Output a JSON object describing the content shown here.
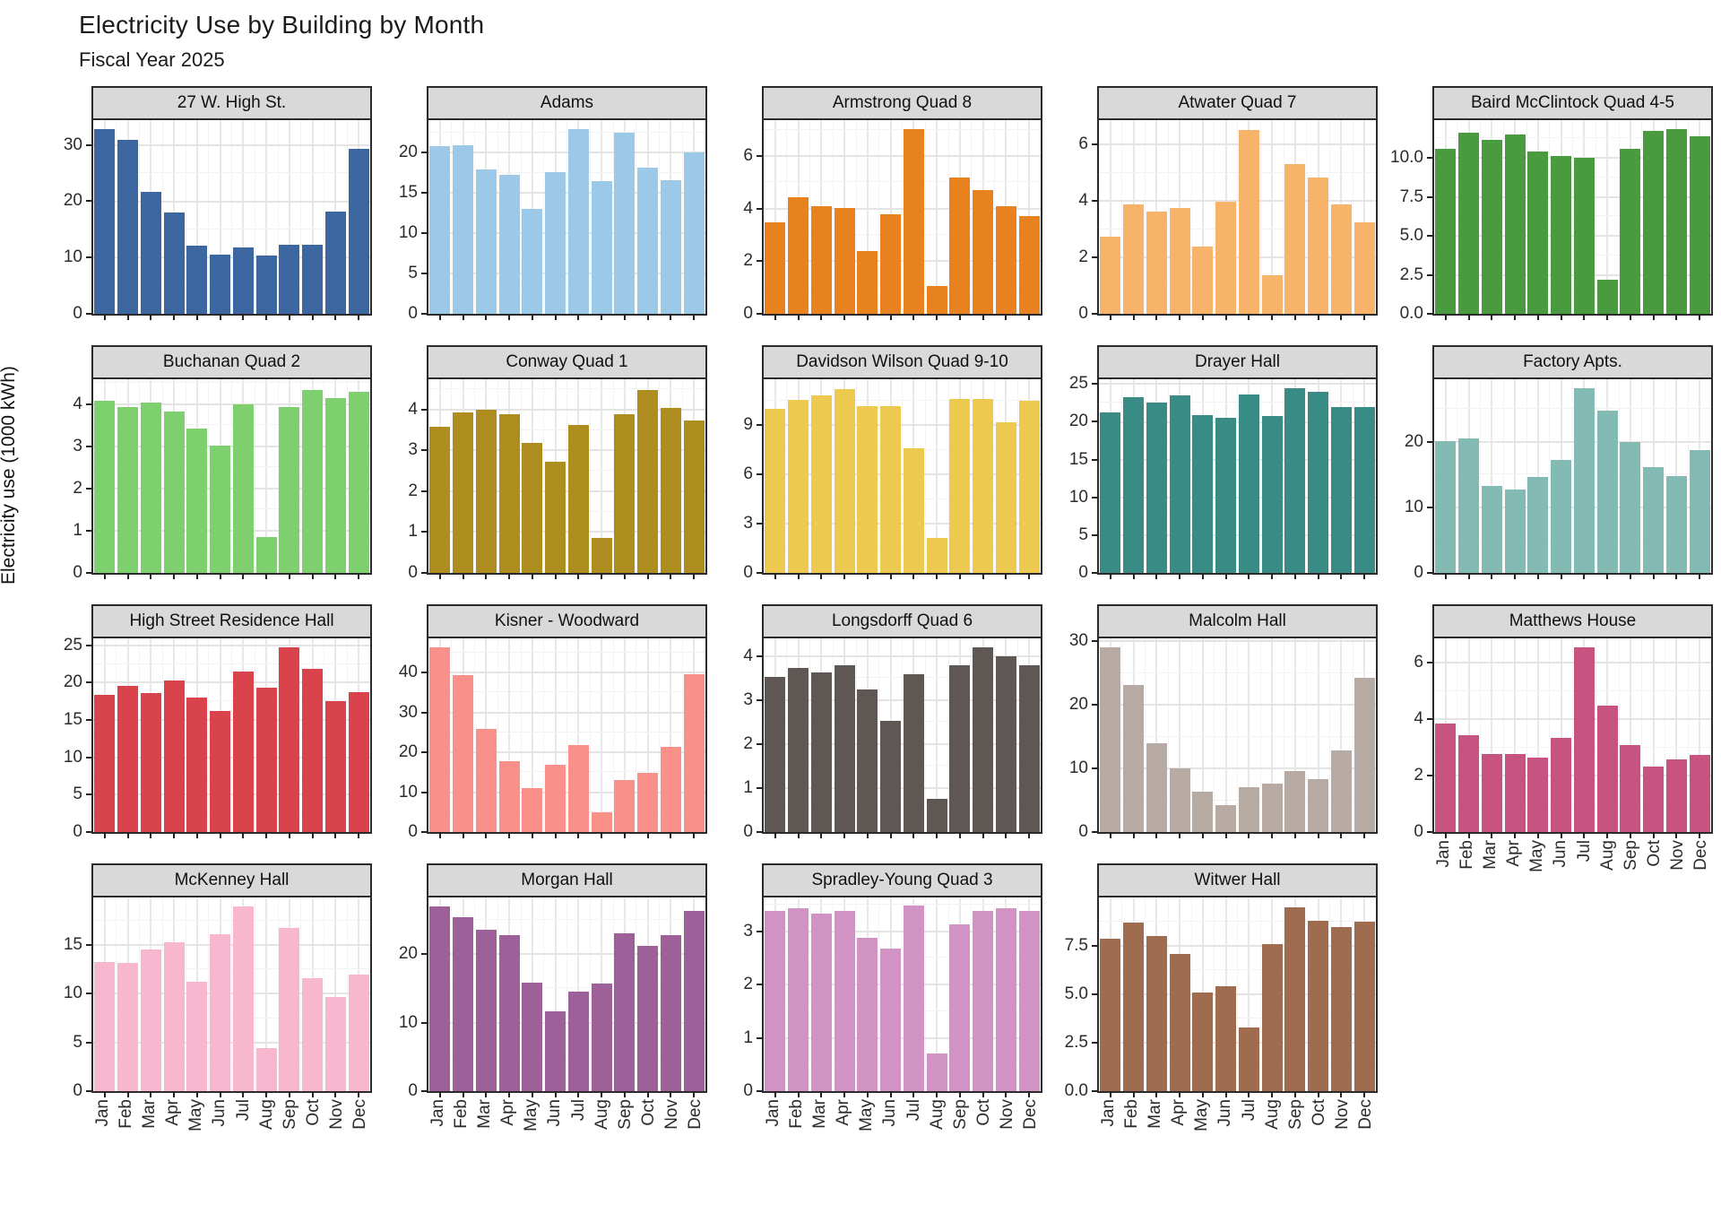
{
  "page": {
    "title": "Electricity Use by Building by Month",
    "subtitle": "Fiscal Year 2025",
    "ylabel": "Electricity use (1000 kWh)"
  },
  "chart_data": {
    "type": "bar",
    "title": "Electricity Use by Building by Month",
    "subtitle": "Fiscal Year 2025",
    "ylabel": "Electricity use (1000 kWh)",
    "categories": [
      "Jan",
      "Feb",
      "Mar",
      "Apr",
      "May",
      "Jun",
      "Jul",
      "Aug",
      "Sep",
      "Oct",
      "Nov",
      "Dec"
    ],
    "grid": true,
    "legend": "none",
    "layout": {
      "columns": 5,
      "faceted": true,
      "x_tick_labels_rotation": 90
    },
    "facets": [
      {
        "title": "27 W. High St.",
        "color": "#3C66A0",
        "y_ticks": [
          0,
          10,
          20,
          30
        ],
        "y_tick_labels": [
          "0",
          "10",
          "20",
          "30"
        ],
        "ymax": 34.1,
        "show_x_labels": false,
        "values": [
          32.5,
          30.7,
          21.5,
          17.8,
          12.0,
          10.5,
          11.7,
          10.3,
          12.2,
          12.2,
          18.0,
          29.0
        ]
      },
      {
        "title": "Adams",
        "color": "#9CC9E8",
        "y_ticks": [
          0,
          5,
          10,
          15,
          20
        ],
        "y_tick_labels": [
          "0",
          "5",
          "10",
          "15",
          "20"
        ],
        "ymax": 23.8,
        "show_x_labels": false,
        "values": [
          20.6,
          20.7,
          17.7,
          17.1,
          12.9,
          17.4,
          22.7,
          16.3,
          22.3,
          18.0,
          16.4,
          19.8
        ]
      },
      {
        "title": "Armstrong Quad 8",
        "color": "#E8821E",
        "y_ticks": [
          0,
          2,
          4,
          6
        ],
        "y_tick_labels": [
          "0",
          "2",
          "4",
          "6"
        ],
        "ymax": 7.3,
        "show_x_labels": false,
        "values": [
          3.45,
          4.4,
          4.05,
          4.0,
          2.35,
          3.75,
          6.95,
          1.05,
          5.15,
          4.65,
          4.05,
          3.7
        ]
      },
      {
        "title": "Atwater Quad 7",
        "color": "#F7B369",
        "y_ticks": [
          0,
          2,
          4,
          6
        ],
        "y_tick_labels": [
          "0",
          "2",
          "4",
          "6"
        ],
        "ymax": 6.8,
        "show_x_labels": false,
        "values": [
          2.7,
          3.85,
          3.6,
          3.7,
          2.35,
          3.95,
          6.45,
          1.35,
          5.25,
          4.8,
          3.85,
          3.2
        ]
      },
      {
        "title": "Baird McClintock Quad 4-5",
        "color": "#4A9B3F",
        "y_ticks": [
          0,
          2.5,
          5,
          7.5,
          10
        ],
        "y_tick_labels": [
          "0.0",
          "2.5",
          "5.0",
          "7.5",
          "10.0"
        ],
        "ymax": 12.3,
        "show_x_labels": false,
        "values": [
          10.5,
          11.5,
          11.05,
          11.4,
          10.3,
          10.0,
          9.9,
          2.15,
          10.5,
          11.6,
          11.75,
          11.3
        ]
      },
      {
        "title": "Buchanan Quad 2",
        "color": "#7ED06F",
        "y_ticks": [
          0,
          1,
          2,
          3,
          4
        ],
        "y_tick_labels": [
          "0",
          "1",
          "2",
          "3",
          "4"
        ],
        "ymax": 4.55,
        "show_x_labels": false,
        "values": [
          4.05,
          3.9,
          4.0,
          3.8,
          3.4,
          3.0,
          3.95,
          0.85,
          3.9,
          4.3,
          4.1,
          4.25
        ]
      },
      {
        "title": "Conway Quad 1",
        "color": "#AC8D1D",
        "y_ticks": [
          0,
          1,
          2,
          3,
          4
        ],
        "y_tick_labels": [
          "0",
          "1",
          "2",
          "3",
          "4"
        ],
        "ymax": 4.7,
        "show_x_labels": false,
        "values": [
          3.55,
          3.9,
          3.95,
          3.85,
          3.15,
          2.7,
          3.6,
          0.85,
          3.85,
          4.45,
          4.0,
          3.7
        ]
      },
      {
        "title": "Davidson Wilson Quad 9-10",
        "color": "#EEC94F",
        "y_ticks": [
          0,
          3,
          6,
          9
        ],
        "y_tick_labels": [
          "0",
          "3",
          "6",
          "9"
        ],
        "ymax": 11.7,
        "show_x_labels": false,
        "values": [
          9.9,
          10.45,
          10.75,
          11.1,
          10.05,
          10.1,
          7.55,
          2.1,
          10.5,
          10.5,
          9.1,
          10.4
        ]
      },
      {
        "title": "Drayer Hall",
        "color": "#398B85",
        "y_ticks": [
          0,
          5,
          10,
          15,
          20,
          25
        ],
        "y_tick_labels": [
          "0",
          "5",
          "10",
          "15",
          "20",
          "25"
        ],
        "ymax": 25.4,
        "show_x_labels": false,
        "values": [
          21.0,
          23.0,
          22.4,
          23.3,
          20.7,
          20.4,
          23.4,
          20.6,
          24.2,
          23.8,
          21.8,
          21.8
        ]
      },
      {
        "title": "Factory Apts.",
        "color": "#84BAB4",
        "y_ticks": [
          0,
          10,
          20
        ],
        "y_tick_labels": [
          "0",
          "10",
          "20"
        ],
        "ymax": 29.3,
        "show_x_labels": false,
        "values": [
          20.0,
          20.3,
          13.1,
          12.6,
          14.5,
          17.1,
          27.9,
          24.5,
          19.8,
          16.0,
          14.6,
          18.6
        ]
      },
      {
        "title": "High Street Residence Hall",
        "color": "#D9434C",
        "y_ticks": [
          0,
          5,
          10,
          15,
          20,
          25
        ],
        "y_tick_labels": [
          "0",
          "5",
          "10",
          "15",
          "20",
          "25"
        ],
        "ymax": 25.7,
        "show_x_labels": false,
        "values": [
          18.2,
          19.4,
          18.4,
          20.1,
          17.9,
          16.1,
          21.3,
          19.2,
          24.5,
          21.6,
          17.4,
          18.6
        ]
      },
      {
        "title": "Kisner - Woodward",
        "color": "#F9908A",
        "y_ticks": [
          0,
          10,
          20,
          30,
          40
        ],
        "y_tick_labels": [
          "0",
          "10",
          "20",
          "30",
          "40"
        ],
        "ymax": 48.1,
        "show_x_labels": false,
        "values": [
          45.8,
          39.0,
          25.6,
          17.5,
          11.0,
          16.7,
          21.6,
          5.0,
          13.0,
          14.8,
          21.2,
          39.1
        ]
      },
      {
        "title": "Longsdorff Quad 6",
        "color": "#5E5753",
        "y_ticks": [
          0,
          1,
          2,
          3,
          4
        ],
        "y_tick_labels": [
          "0",
          "1",
          "2",
          "3",
          "4"
        ],
        "ymax": 4.36,
        "show_x_labels": false,
        "values": [
          3.5,
          3.7,
          3.6,
          3.75,
          3.2,
          2.5,
          3.55,
          0.75,
          3.75,
          4.15,
          3.95,
          3.75
        ]
      },
      {
        "title": "Malcolm Hall",
        "color": "#B6AAA3",
        "y_ticks": [
          0,
          10,
          20,
          30
        ],
        "y_tick_labels": [
          "0",
          "10",
          "20",
          "30"
        ],
        "ymax": 30.2,
        "show_x_labels": false,
        "values": [
          28.8,
          23.0,
          13.8,
          9.9,
          6.3,
          4.2,
          7.0,
          7.5,
          9.5,
          8.3,
          12.7,
          24.0
        ]
      },
      {
        "title": "Matthews House",
        "color": "#C65380",
        "y_ticks": [
          0,
          2,
          4,
          6
        ],
        "y_tick_labels": [
          "0",
          "2",
          "4",
          "6"
        ],
        "ymax": 6.8,
        "show_x_labels": true,
        "values": [
          3.8,
          3.4,
          2.75,
          2.75,
          2.6,
          3.3,
          6.5,
          4.45,
          3.05,
          2.3,
          2.55,
          2.7
        ]
      },
      {
        "title": "McKenney Hall",
        "color": "#F6B7CF",
        "y_ticks": [
          0,
          5,
          10,
          15
        ],
        "y_tick_labels": [
          "0",
          "5",
          "10",
          "15"
        ],
        "ymax": 19.7,
        "show_x_labels": true,
        "values": [
          13.1,
          13.0,
          14.4,
          15.1,
          11.1,
          16.0,
          18.8,
          4.4,
          16.6,
          11.5,
          9.6,
          11.9
        ]
      },
      {
        "title": "Morgan Hall",
        "color": "#9D6099",
        "y_ticks": [
          0,
          10,
          20
        ],
        "y_tick_labels": [
          "0",
          "10",
          "20"
        ],
        "ymax": 28.0,
        "show_x_labels": true,
        "values": [
          26.7,
          25.1,
          23.3,
          22.5,
          15.7,
          11.6,
          14.4,
          15.6,
          22.8,
          21.0,
          22.5,
          26.1
        ]
      },
      {
        "title": "Spradley-Young  Quad 3",
        "color": "#D093C4",
        "y_ticks": [
          0,
          1,
          2,
          3
        ],
        "y_tick_labels": [
          "0",
          "1",
          "2",
          "3"
        ],
        "ymax": 3.6,
        "show_x_labels": true,
        "values": [
          3.35,
          3.4,
          3.3,
          3.35,
          2.85,
          2.65,
          3.45,
          0.7,
          3.1,
          3.35,
          3.4,
          3.35
        ]
      },
      {
        "title": "Witwer Hall",
        "color": "#9F6C50",
        "y_ticks": [
          0,
          2.5,
          5,
          7.5
        ],
        "y_tick_labels": [
          "0.0",
          "2.5",
          "5.0",
          "7.5"
        ],
        "ymax": 9.9,
        "show_x_labels": true,
        "values": [
          7.8,
          8.6,
          7.95,
          7.0,
          5.05,
          5.35,
          3.25,
          7.5,
          9.4,
          8.7,
          8.4,
          8.65
        ]
      }
    ]
  }
}
